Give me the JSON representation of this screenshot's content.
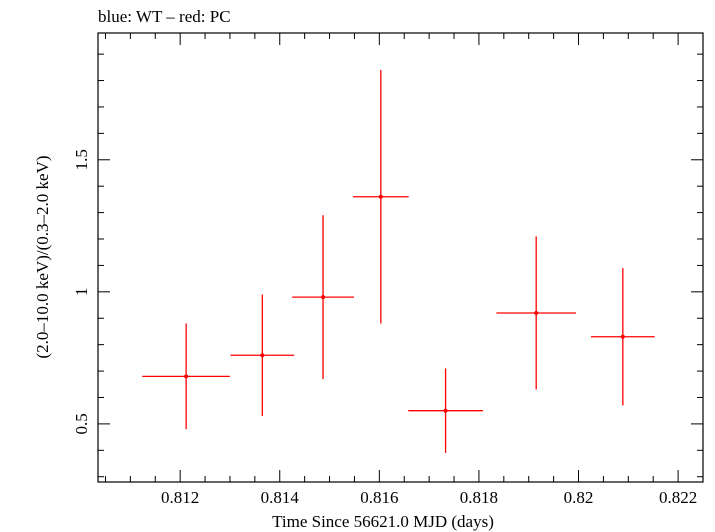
{
  "chart_data": {
    "type": "scatter",
    "title": "blue: WT – red: PC",
    "xlabel": "Time Since 56621.0 MJD (days)",
    "ylabel": "(2.0–10.0 keV)/(0.3–2.0 keV)",
    "xlim": [
      0.81035,
      0.8225
    ],
    "ylim": [
      0.28,
      1.98
    ],
    "x_ticks": [
      0.812,
      0.814,
      0.816,
      0.818,
      0.82,
      0.822
    ],
    "x_tick_labels": [
      "0.812",
      "0.814",
      "0.816",
      "0.818",
      "0.82",
      "0.822"
    ],
    "y_ticks": [
      0.5,
      1.0,
      1.5
    ],
    "y_tick_labels": [
      "0.5",
      "1",
      "1.5"
    ],
    "x_minor_step": 0.0005,
    "y_minor_step": 0.1,
    "grid": false,
    "series": [
      {
        "name": "PC",
        "color": "#ff0000",
        "points": [
          {
            "x": 0.81212,
            "xerr": 0.00088,
            "y": 0.68,
            "yerr_low": 0.2,
            "yerr_high": 0.2
          },
          {
            "x": 0.81365,
            "xerr": 0.00064,
            "y": 0.76,
            "yerr_low": 0.23,
            "yerr_high": 0.23
          },
          {
            "x": 0.81487,
            "xerr": 0.00062,
            "y": 0.98,
            "yerr_low": 0.31,
            "yerr_high": 0.31
          },
          {
            "x": 0.81603,
            "xerr": 0.00056,
            "y": 1.36,
            "yerr_low": 0.48,
            "yerr_high": 0.48
          },
          {
            "x": 0.81733,
            "xerr": 0.00075,
            "y": 0.55,
            "yerr_low": 0.16,
            "yerr_high": 0.16
          },
          {
            "x": 0.81915,
            "xerr": 0.0008,
            "y": 0.92,
            "yerr_low": 0.29,
            "yerr_high": 0.29
          },
          {
            "x": 0.82089,
            "xerr": 0.00064,
            "y": 0.83,
            "yerr_low": 0.26,
            "yerr_high": 0.26
          }
        ]
      }
    ]
  }
}
